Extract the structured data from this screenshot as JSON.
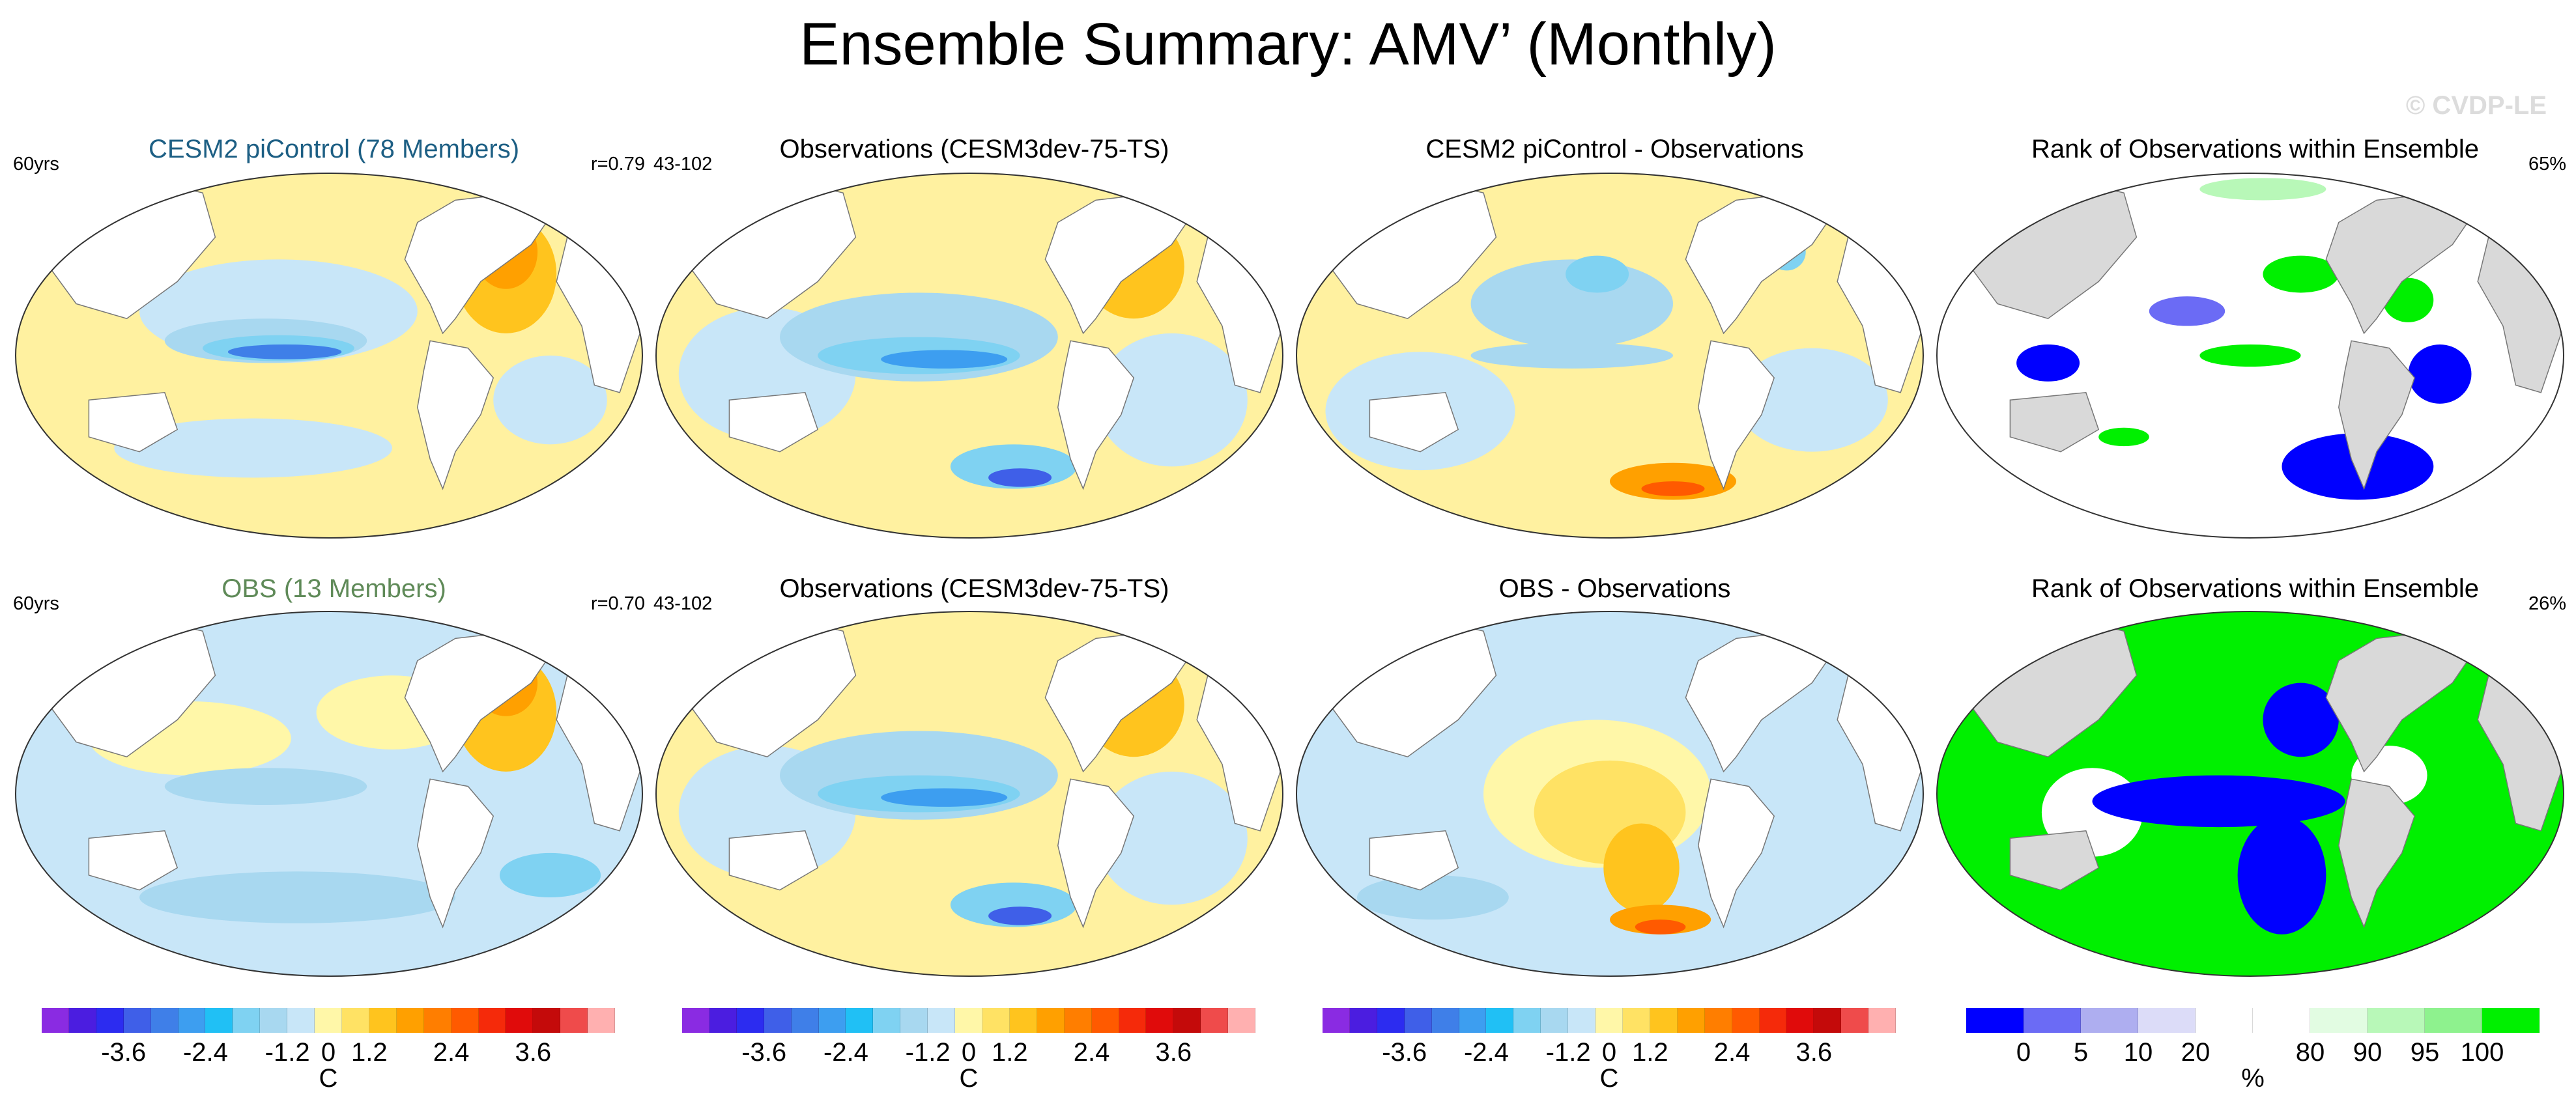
{
  "title": "Ensemble Summary: AMV’ (Monthly)",
  "watermark": "© CVDP-LE",
  "rows": [
    {
      "panels": [
        {
          "title": "CESM2 piControl (78 Members)",
          "title_color": "#1d5f84",
          "left_label": "60yrs",
          "right_label": "r=0.79",
          "scheme": "diverging",
          "variant": "model"
        },
        {
          "title": "Observations (CESM3dev-75-TS)",
          "title_color": "#000000",
          "left_label": "43-102",
          "right_label": "",
          "scheme": "diverging",
          "variant": "obs"
        },
        {
          "title": "CESM2 piControl - Observations",
          "title_color": "#000000",
          "left_label": "",
          "right_label": "",
          "scheme": "diverging",
          "variant": "diff"
        },
        {
          "title": "Rank of Observations within Ensemble",
          "title_color": "#000000",
          "left_label": "",
          "right_label": "65%",
          "scheme": "rank",
          "variant": "rank1"
        }
      ]
    },
    {
      "panels": [
        {
          "title": "OBS (13 Members)",
          "title_color": "#5f8a58",
          "left_label": "60yrs",
          "right_label": "r=0.70",
          "scheme": "diverging",
          "variant": "model2"
        },
        {
          "title": "Observations (CESM3dev-75-TS)",
          "title_color": "#000000",
          "left_label": "43-102",
          "right_label": "",
          "scheme": "diverging",
          "variant": "obs"
        },
        {
          "title": "OBS - Observations",
          "title_color": "#000000",
          "left_label": "",
          "right_label": "",
          "scheme": "diverging",
          "variant": "diff2"
        },
        {
          "title": "Rank of Observations within Ensemble",
          "title_color": "#000000",
          "left_label": "",
          "right_label": "26%",
          "scheme": "rank",
          "variant": "rank2"
        }
      ]
    }
  ],
  "colorbars": [
    {
      "unit": "C",
      "colors": [
        "#8a2be2",
        "#4b1de0",
        "#2c2cf0",
        "#3f5fe8",
        "#3f7fe8",
        "#3d9ef0",
        "#20c0f5",
        "#7fd2f2",
        "#a8d8f0",
        "#c8e6f8",
        "#fff7a8",
        "#ffe264",
        "#ffc41e",
        "#ffa000",
        "#ff7e00",
        "#ff5a00",
        "#f52a0a",
        "#e00b0b",
        "#c40a0a",
        "#ef4b4b",
        "#ffb0b0"
      ],
      "ticks": [
        "-3.6",
        "-2.4",
        "-1.2",
        "0",
        "1.2",
        "2.4",
        "3.6"
      ]
    },
    {
      "unit": "C",
      "colors": [
        "#8a2be2",
        "#4b1de0",
        "#2c2cf0",
        "#3f5fe8",
        "#3f7fe8",
        "#3d9ef0",
        "#20c0f5",
        "#7fd2f2",
        "#a8d8f0",
        "#c8e6f8",
        "#fff7a8",
        "#ffe264",
        "#ffc41e",
        "#ffa000",
        "#ff7e00",
        "#ff5a00",
        "#f52a0a",
        "#e00b0b",
        "#c40a0a",
        "#ef4b4b",
        "#ffb0b0"
      ],
      "ticks": [
        "-3.6",
        "-2.4",
        "-1.2",
        "0",
        "1.2",
        "2.4",
        "3.6"
      ]
    },
    {
      "unit": "C",
      "colors": [
        "#8a2be2",
        "#4b1de0",
        "#2c2cf0",
        "#3f5fe8",
        "#3f7fe8",
        "#3d9ef0",
        "#20c0f5",
        "#7fd2f2",
        "#a8d8f0",
        "#c8e6f8",
        "#fff7a8",
        "#ffe264",
        "#ffc41e",
        "#ffa000",
        "#ff7e00",
        "#ff5a00",
        "#f52a0a",
        "#e00b0b",
        "#c40a0a",
        "#ef4b4b",
        "#ffb0b0"
      ],
      "ticks": [
        "-3.6",
        "-2.4",
        "-1.2",
        "0",
        "1.2",
        "2.4",
        "3.6"
      ]
    },
    {
      "unit": "%",
      "colors": [
        "#0000ff",
        "#6b6bf5",
        "#aeaef0",
        "#dcdcf8",
        "#ffffff",
        "#ffffff",
        "#e2fce2",
        "#b8f8b8",
        "#8ef28e",
        "#00f000"
      ],
      "ticks": [
        "0",
        "5",
        "10",
        "20",
        "80",
        "90",
        "95",
        "100"
      ]
    }
  ]
}
